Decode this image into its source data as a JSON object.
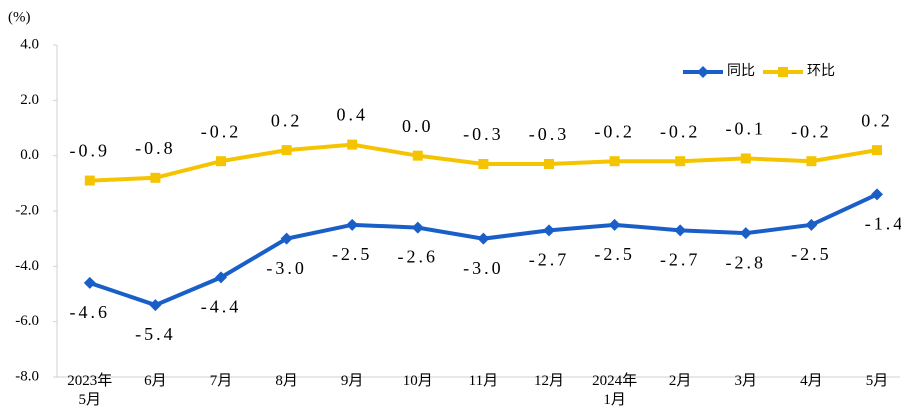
{
  "chart_data": {
    "type": "line",
    "y_label": "(%)",
    "categories": [
      "2023年\n5月",
      "6月",
      "7月",
      "8月",
      "9月",
      "10月",
      "11月",
      "12月",
      "2024年\n1月",
      "2月",
      "3月",
      "4月",
      "5月"
    ],
    "series": [
      {
        "name": "同比",
        "color": "#1a5fc8",
        "marker": "diamond",
        "values": [
          -4.6,
          -5.4,
          -4.4,
          -3.0,
          -2.5,
          -2.6,
          -3.0,
          -2.7,
          -2.5,
          -2.7,
          -2.8,
          -2.5,
          -1.4
        ],
        "value_labels": [
          "-4.6",
          "-5.4",
          "-4.4",
          "-3.0",
          "-2.5",
          "-2.6",
          "-3.0",
          "-2.7",
          "-2.5",
          "-2.7",
          "-2.8",
          "-2.5",
          "-1.4"
        ]
      },
      {
        "name": "环比",
        "color": "#f5c400",
        "marker": "square",
        "values": [
          -0.9,
          -0.8,
          -0.2,
          0.2,
          0.4,
          0.0,
          -0.3,
          -0.3,
          -0.2,
          -0.2,
          -0.1,
          -0.2,
          0.2
        ],
        "value_labels": [
          "-0.9",
          "-0.8",
          "-0.2",
          "0.2",
          "0.4",
          "0.0",
          "-0.3",
          "-0.3",
          "-0.2",
          "-0.2",
          "-0.1",
          "-0.2",
          "0.2"
        ]
      }
    ],
    "ylim": [
      -8,
      4
    ],
    "yticks": [
      {
        "value": -8,
        "label": "-8.0"
      },
      {
        "value": -6,
        "label": "-6.0"
      },
      {
        "value": -4,
        "label": "-4.0"
      },
      {
        "value": -2,
        "label": "-2.0"
      },
      {
        "value": 0,
        "label": "0.0"
      },
      {
        "value": 2,
        "label": "2.0"
      },
      {
        "value": 4,
        "label": "4.0"
      }
    ],
    "grid": false,
    "legend": "upper right"
  }
}
